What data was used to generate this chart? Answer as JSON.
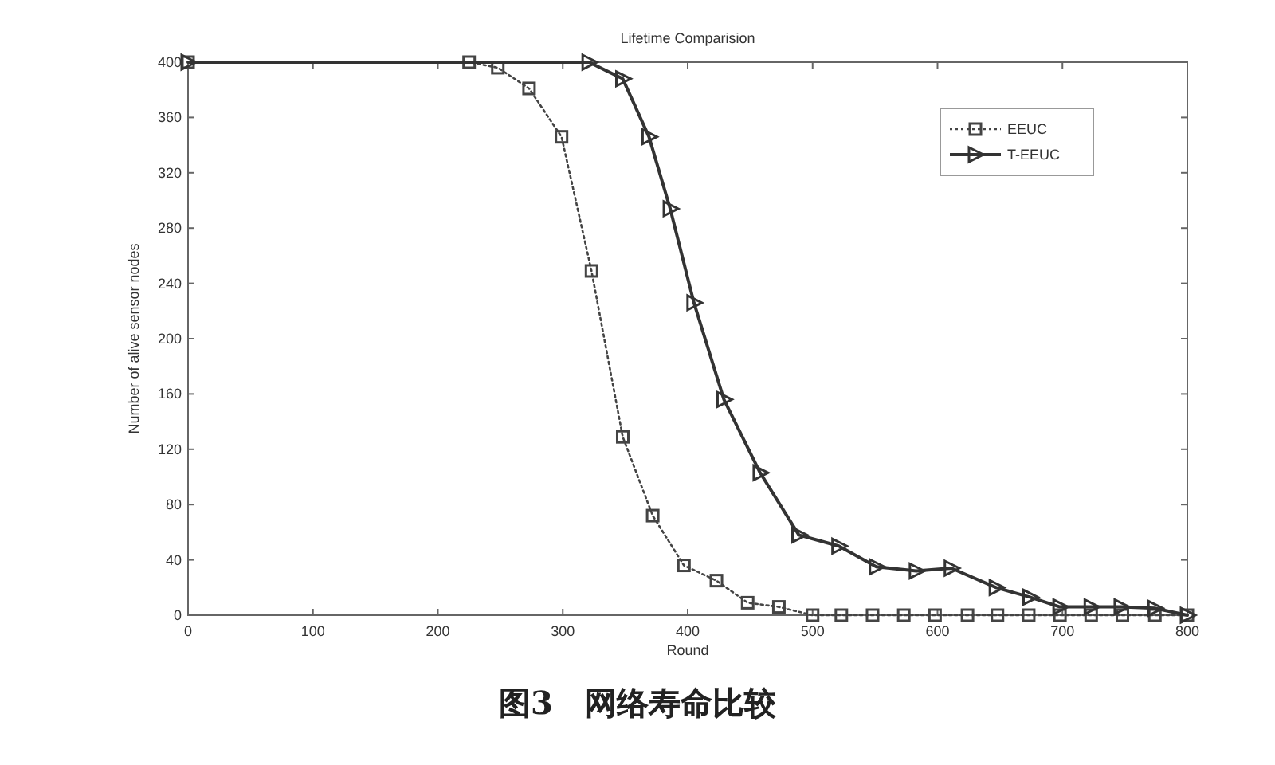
{
  "chart_data": {
    "type": "line",
    "title": "Lifetime Comparision",
    "xlabel": "Round",
    "ylabel": "Number of alive sensor nodes",
    "annotations": [
      "图3　网络寿命比较"
    ],
    "xlim": [
      0,
      800
    ],
    "ylim": [
      0,
      400
    ],
    "xticks": [
      0,
      100,
      200,
      300,
      400,
      500,
      600,
      700,
      800
    ],
    "yticks": [
      0,
      40,
      80,
      120,
      160,
      200,
      240,
      280,
      320,
      360,
      400
    ],
    "grid": false,
    "legend": "top right",
    "series": [
      {
        "name": "EEUC",
        "color": "#444444",
        "marker": "square",
        "line_style": "dotted",
        "x": [
          0,
          225,
          248,
          273,
          299,
          323,
          348,
          372,
          397,
          423,
          448,
          473,
          500,
          523,
          548,
          573,
          598,
          624,
          648,
          673,
          698,
          723,
          748,
          774,
          800
        ],
        "values": [
          400,
          400,
          396,
          381,
          346,
          249,
          129,
          72,
          36,
          25,
          9,
          6,
          0,
          0,
          0,
          0,
          0,
          0,
          0,
          0,
          0,
          0,
          0,
          0,
          0
        ]
      },
      {
        "name": "T-EEUC",
        "color": "#333333",
        "marker": "triangle",
        "line_style": "solid",
        "x": [
          0,
          321,
          348,
          369,
          386,
          405,
          429,
          458,
          489,
          521,
          551,
          583,
          611,
          647,
          674,
          698,
          723,
          747,
          774,
          800
        ],
        "values": [
          400,
          400,
          388,
          346,
          294,
          226,
          156,
          103,
          58,
          50,
          35,
          32,
          34,
          20,
          13,
          6,
          6,
          6,
          5,
          0
        ]
      }
    ]
  }
}
